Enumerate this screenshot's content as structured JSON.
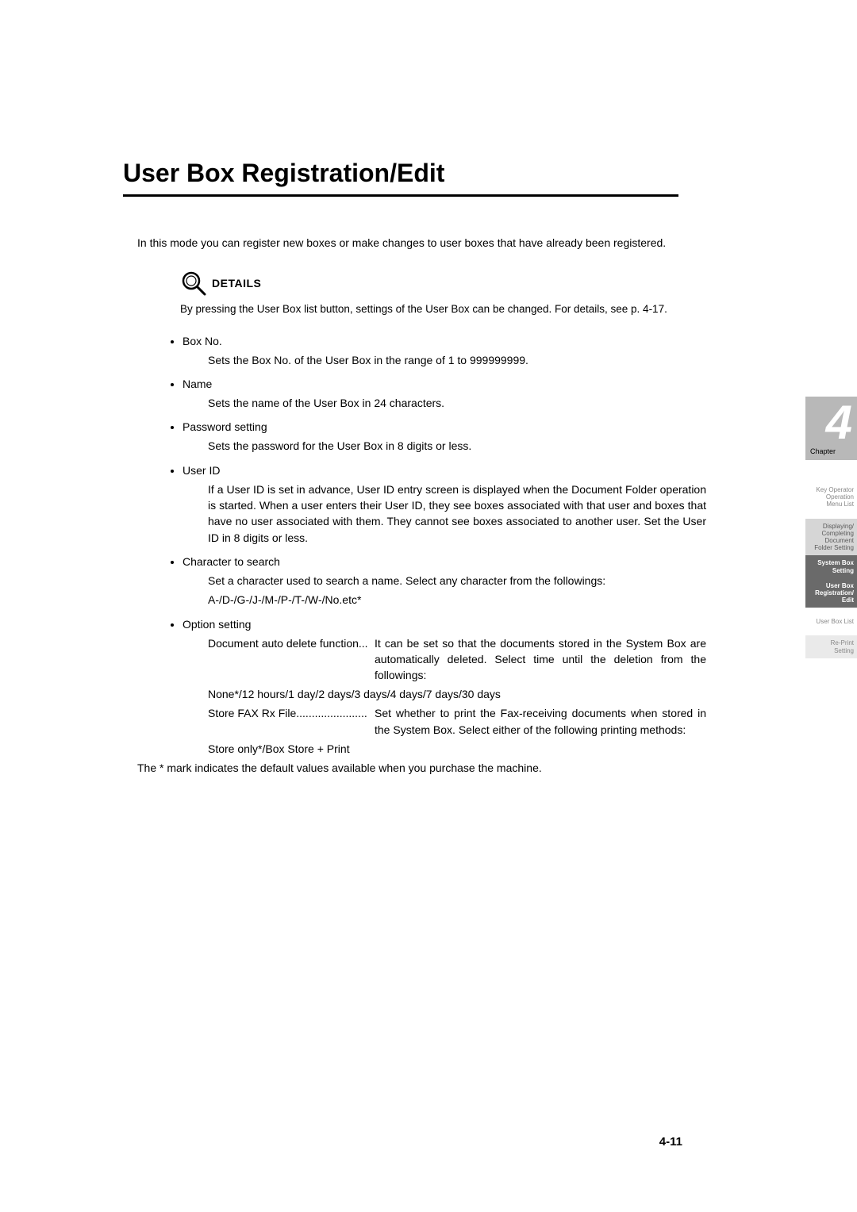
{
  "title": "User Box Registration/Edit",
  "intro": "In this mode you can register new boxes or make changes to user boxes that have already been registered.",
  "details": {
    "heading": "DETAILS",
    "text": "By pressing the User Box list button, settings of the User Box can be changed. For details, see p. 4-17."
  },
  "fields": {
    "box_no": {
      "label": "Box No.",
      "desc": "Sets the Box No. of the User Box in the range of 1 to 999999999."
    },
    "name": {
      "label": "Name",
      "desc": "Sets the name of the User Box in 24 characters."
    },
    "password": {
      "label": "Password setting",
      "desc": "Sets the password for the User Box in 8 digits or less."
    },
    "user_id": {
      "label": "User ID",
      "desc": "If a User ID is set in advance, User ID entry screen is displayed when the Document Folder operation is started. When a user enters their User ID, they see boxes associated with that user and boxes that have no user associated with them. They cannot see boxes associated to another user. Set the User ID in 8 digits or less."
    },
    "char_search": {
      "label": "Character to search",
      "desc1": "Set a character used to search a name. Select any character from the followings:",
      "desc2": "A-/D-/G-/J-/M-/P-/T-/W-/No.etc*"
    },
    "option": {
      "label": "Option setting",
      "auto_delete": {
        "key": "Document auto delete function...",
        "val1": "It can be set so that the documents stored in the System Box are automatically deleted. Select time until the deletion from the followings:",
        "val2": "None*/12 hours/1 day/2 days/3 days/4 days/7 days/30 days"
      },
      "fax_rx": {
        "key": "Store FAX Rx File.......................",
        "val1": "Set whether to print the Fax-receiving documents when stored in the System Box. Select either of the following printing methods:",
        "val2": "Store only*/Box Store + Print"
      }
    }
  },
  "footnote": "The * mark indicates the default values available when you purchase the machine.",
  "page_number": "4-11",
  "side": {
    "chapter_label": "Chapter",
    "chapter_num": "4",
    "tabs": [
      {
        "text": "Key Operator\nOperation\nMenu List",
        "style": "plain"
      },
      {
        "text": "Displaying/\nCompleting\nDocument\nFolder Setting",
        "style": "grey"
      },
      {
        "text": "System Box\nSetting",
        "style": "dark"
      },
      {
        "text": "User Box\nRegistration/\nEdit",
        "style": "dark"
      },
      {
        "text": "User Box List",
        "style": "plain"
      },
      {
        "text": "Re-Print\nSetting",
        "style": "light"
      }
    ]
  },
  "icons": {
    "magnifier": "magnifier-icon"
  }
}
